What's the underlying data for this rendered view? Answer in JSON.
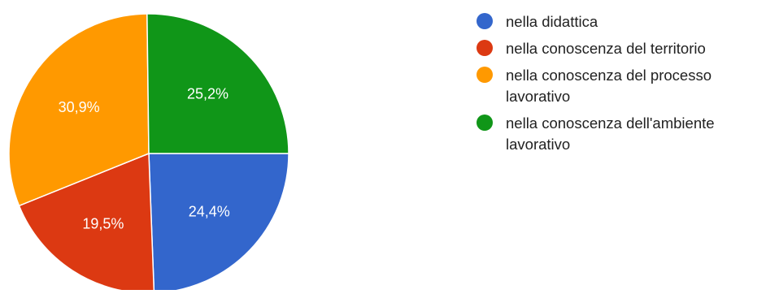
{
  "chart_data": {
    "type": "pie",
    "categories": [
      "nella didattica",
      "nella conoscenza del territorio",
      "nella conoscenza del processo lavorativo",
      "nella conoscenza dell'ambiente lavorativo"
    ],
    "values": [
      24.4,
      19.5,
      30.9,
      25.2
    ],
    "data_labels": [
      "24,4%",
      "19,5%",
      "30,9%",
      "25,2%"
    ],
    "colors": [
      "#3366cc",
      "#dc3912",
      "#ff9900",
      "#109618"
    ],
    "start_angle_deg": 90,
    "direction": "clockwise",
    "legend_position": "right"
  }
}
